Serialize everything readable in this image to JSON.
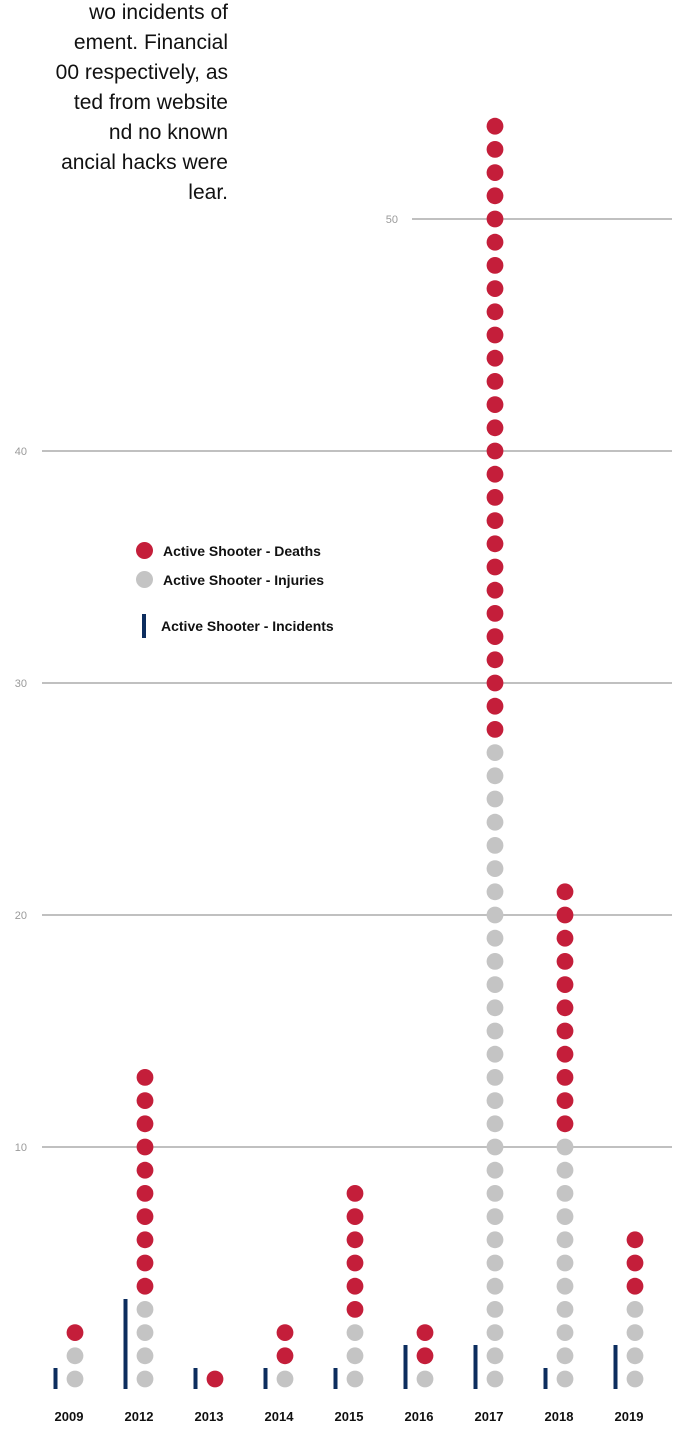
{
  "intro_text": {
    "lines": [
      "wo incidents of",
      "ement. Financial",
      "00 respectively, as",
      "ted from website",
      "nd no known",
      "ancial hacks were",
      "lear."
    ]
  },
  "legend": {
    "deaths_label": "Active Shooter - Deaths",
    "injuries_label": "Active Shooter - Injuries",
    "incidents_label": "Active Shooter - Incidents"
  },
  "colors": {
    "deaths": "#c41e3a",
    "injuries": "#c4c4c4",
    "incidents": "#0c2d5e",
    "gridline": "#808080",
    "tick_label": "#9a9a9a",
    "year_label": "#111111"
  },
  "chart_data": {
    "type": "bar",
    "categories": [
      "2009",
      "2012",
      "2013",
      "2014",
      "2015",
      "2016",
      "2017",
      "2018",
      "2019"
    ],
    "series": [
      {
        "name": "Active Shooter - Deaths",
        "values": [
          1,
          10,
          1,
          2,
          6,
          2,
          27,
          11,
          3
        ]
      },
      {
        "name": "Active Shooter - Injuries",
        "values": [
          2,
          4,
          0,
          1,
          3,
          1,
          28,
          11,
          4
        ]
      },
      {
        "name": "Active Shooter - Incidents",
        "values": [
          1,
          4,
          1,
          1,
          1,
          2,
          2,
          1,
          2
        ]
      }
    ],
    "stacked": true,
    "y_ticks": [
      10,
      20,
      30,
      40,
      50,
      60
    ],
    "ylim": [
      0,
      60
    ],
    "grid": true,
    "legend_position": "middle-left"
  }
}
